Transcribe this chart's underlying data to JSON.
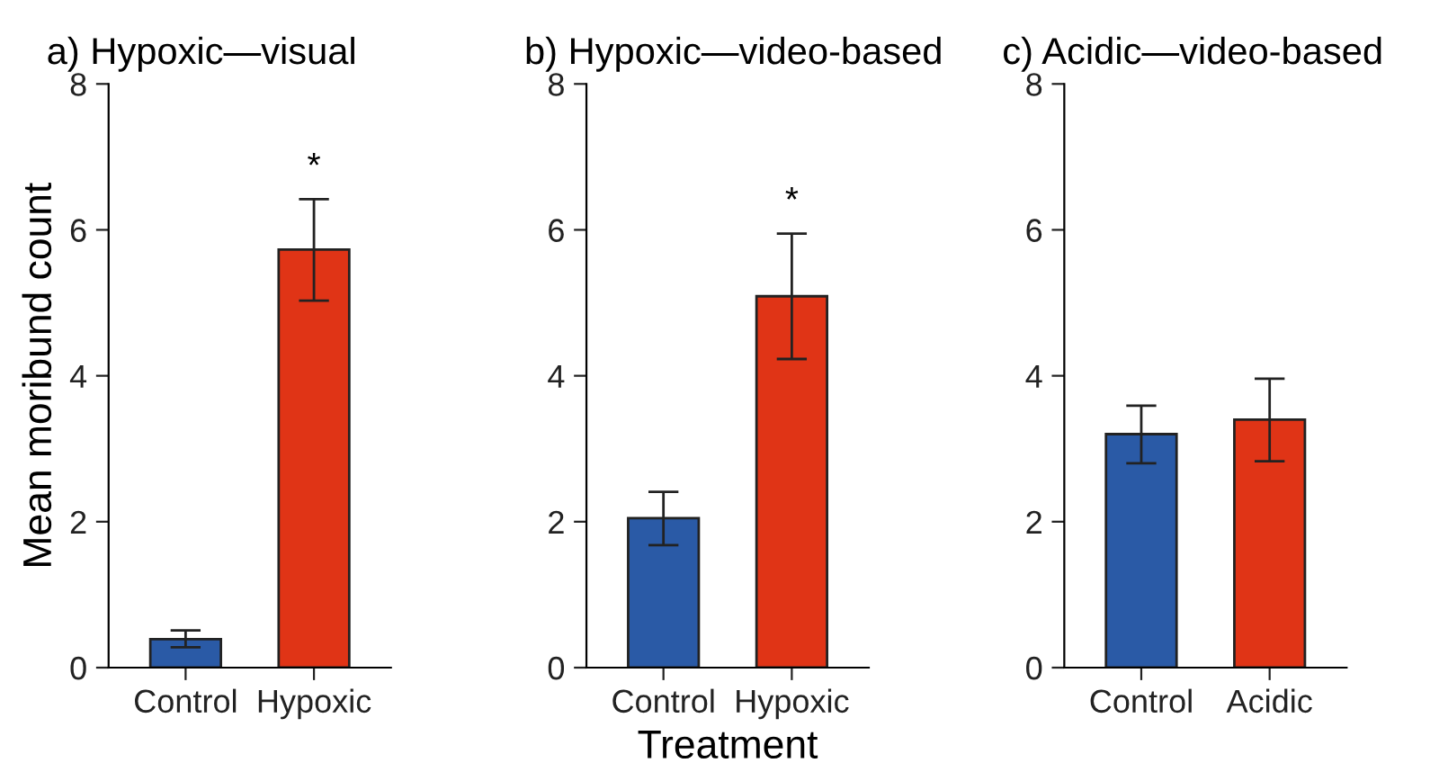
{
  "chart_data": [
    {
      "type": "bar",
      "title": "a) Hypoxic—visual",
      "ylabel": "Mean moribund count",
      "categories": [
        "Control",
        "Hypoxic"
      ],
      "values": [
        0.39,
        5.73
      ],
      "colors": [
        "#2a5aa6",
        "#e03416"
      ],
      "errors": [
        [
          0.28,
          0.51
        ],
        [
          5.03,
          6.42
        ]
      ],
      "ylim": [
        0,
        8
      ],
      "yticks": [
        0,
        2,
        4,
        6,
        8
      ],
      "annotations": [
        {
          "text": "*",
          "x": "Hypoxic",
          "y": 6.42
        }
      ]
    },
    {
      "type": "bar",
      "title": "b) Hypoxic—video-based",
      "xlabel": "Treatment",
      "categories": [
        "Control",
        "Hypoxic"
      ],
      "values": [
        2.05,
        5.09
      ],
      "colors": [
        "#2a5aa6",
        "#e03416"
      ],
      "errors": [
        [
          1.68,
          2.41
        ],
        [
          4.23,
          5.95
        ]
      ],
      "ylim": [
        0,
        8
      ],
      "yticks": [
        0,
        2,
        4,
        6,
        8
      ],
      "annotations": [
        {
          "text": "*",
          "x": "Hypoxic",
          "y": 5.95
        }
      ]
    },
    {
      "type": "bar",
      "title": "c) Acidic—video-based",
      "categories": [
        "Control",
        "Acidic"
      ],
      "values": [
        3.2,
        3.4
      ],
      "colors": [
        "#2a5aa6",
        "#e03416"
      ],
      "errors": [
        [
          2.8,
          3.59
        ],
        [
          2.83,
          3.96
        ]
      ],
      "ylim": [
        0,
        8
      ],
      "yticks": [
        0,
        2,
        4,
        6,
        8
      ]
    }
  ]
}
